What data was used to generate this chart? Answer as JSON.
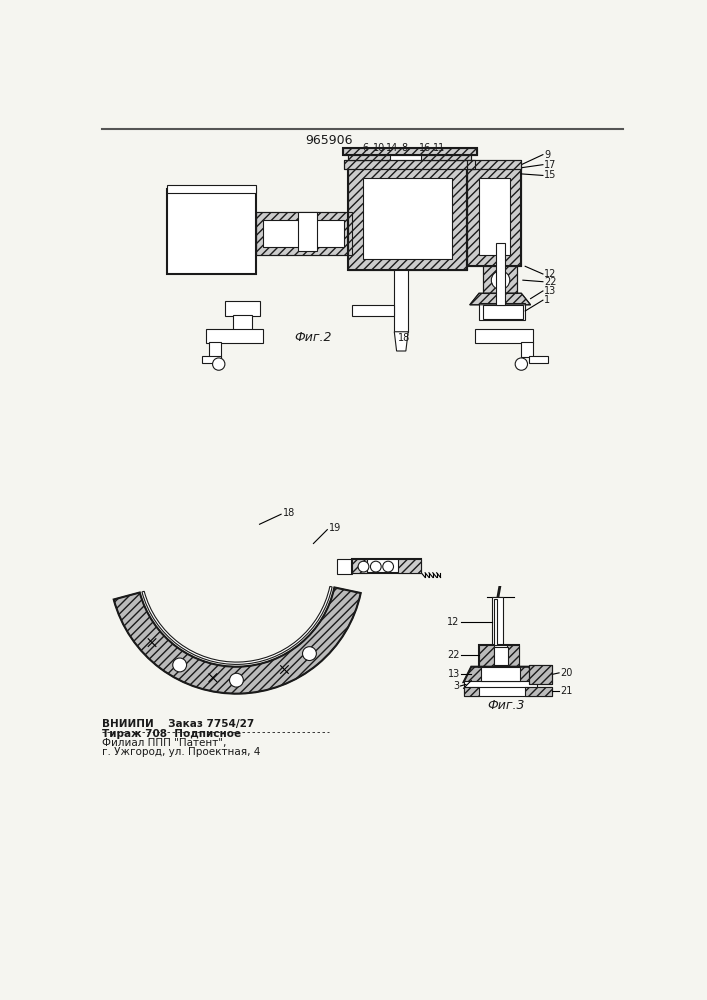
{
  "title": "965906",
  "background_color": "#f5f5f0",
  "line_color": "#1a1a1a",
  "fig_width": 7.07,
  "fig_height": 10.0,
  "dpi": 100,
  "footer_line1": "ВНИИПИ    Заказ 7754/27",
  "footer_line2": "Тираж 708  Подписное",
  "footer_line3": "Филиал ППП \"Патент\",",
  "footer_line4": "г. Ужгород, ул. Проектная, 4",
  "fig2_caption": "Фиг.2",
  "fig3_caption": "Фиг.3"
}
